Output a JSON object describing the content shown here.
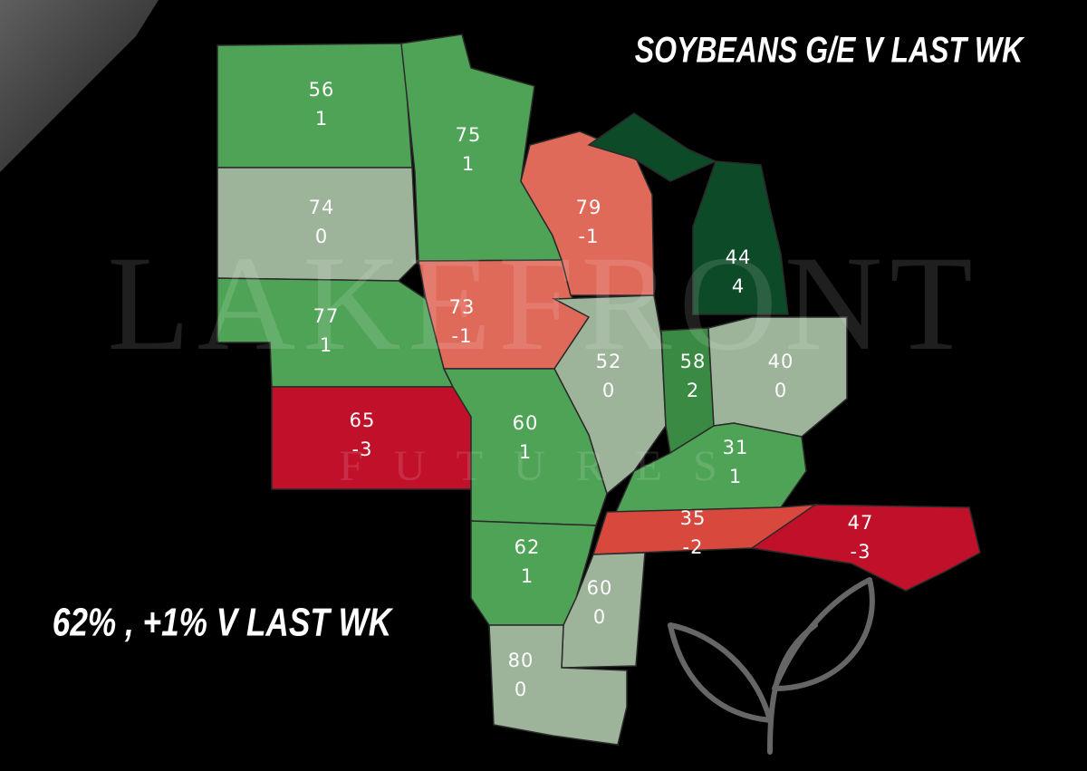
{
  "header": {
    "title": "SOYBEANS G/E V LAST WK"
  },
  "summary": "62% , +1% V LAST WK",
  "watermark": {
    "brand": "LAKEFRONT",
    "tagline": "FUTURES"
  },
  "map": {
    "regions": [
      {
        "value": 56,
        "change": 1,
        "color": "#4fa356"
      },
      {
        "value": 75,
        "change": 1,
        "color": "#4fa356"
      },
      {
        "value": 79,
        "change": -1,
        "color": "#e06a5a"
      },
      {
        "value": 44,
        "change": 4,
        "color": "#0d4a28"
      },
      {
        "value": 74,
        "change": 0,
        "color": "#9db49a"
      },
      {
        "value": 73,
        "change": -1,
        "color": "#e06a5a"
      },
      {
        "value": 77,
        "change": 1,
        "color": "#4fa356"
      },
      {
        "value": 52,
        "change": 0,
        "color": "#9db49a"
      },
      {
        "value": 58,
        "change": 2,
        "color": "#3a8a44"
      },
      {
        "value": 40,
        "change": 0,
        "color": "#9db49a"
      },
      {
        "value": 65,
        "change": -3,
        "color": "#c0102a"
      },
      {
        "value": 60,
        "change": 1,
        "color": "#4fa356"
      },
      {
        "value": 31,
        "change": 1,
        "color": "#4fa356"
      },
      {
        "value": 35,
        "change": -2,
        "color": "#d9483c"
      },
      {
        "value": 47,
        "change": -3,
        "color": "#c0102a"
      },
      {
        "value": 62,
        "change": 1,
        "color": "#4fa356"
      },
      {
        "value": 60,
        "change": 0,
        "color": "#9db49a"
      },
      {
        "value": 80,
        "change": 0,
        "color": "#9db49a"
      }
    ]
  }
}
